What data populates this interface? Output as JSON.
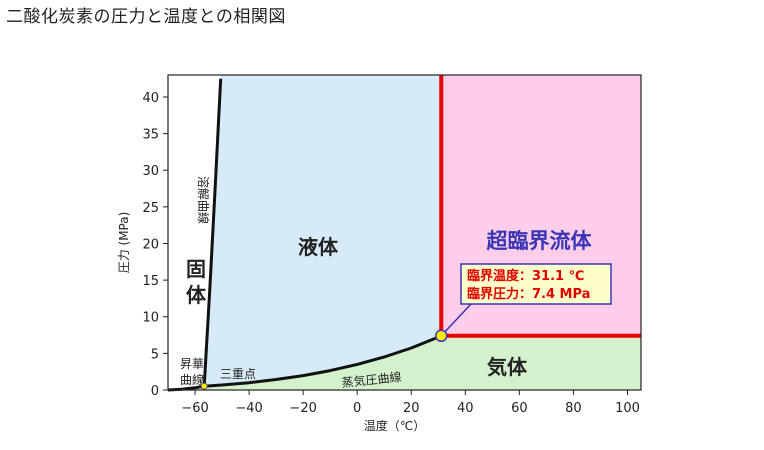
{
  "page": {
    "title": "二酸化炭素の圧力と温度との相関図"
  },
  "colors": {
    "solid": "#ffffff",
    "liquid": "#d6eaf8",
    "gas": "#d3f2cc",
    "supercritical": "#fdcdea",
    "critical_lines": "#e80000",
    "phase_curves": "#111111",
    "critical_point": "#ffee00",
    "supercritical_text": "#3a35b5",
    "callout_fill": "#ffffcc",
    "callout_border": "#3a35b5"
  },
  "chart_data": {
    "type": "line",
    "title": "",
    "xlabel": "温度（℃）",
    "ylabel": "圧力 (MPa)",
    "xlim": [
      -70,
      105
    ],
    "ylim": [
      0,
      43
    ],
    "x_ticks": [
      -60,
      -40,
      -20,
      0,
      20,
      40,
      60,
      80,
      100
    ],
    "x_tick_labels": [
      "−60",
      "−40",
      "−20",
      "0",
      "20",
      "40",
      "60",
      "80",
      "100"
    ],
    "y_ticks": [
      0,
      5,
      10,
      15,
      20,
      25,
      30,
      35,
      40
    ],
    "y_tick_labels": [
      "0",
      "5",
      "10",
      "15",
      "20",
      "25",
      "30",
      "35",
      "40"
    ],
    "grid": false,
    "series": [
      {
        "name": "蒸気圧曲線",
        "x": [
          -56.6,
          -50,
          -40,
          -30,
          -20,
          -10,
          0,
          10,
          20,
          31.1
        ],
        "y": [
          0.52,
          0.68,
          1.0,
          1.43,
          1.97,
          2.65,
          3.49,
          4.5,
          5.73,
          7.38
        ]
      },
      {
        "name": "溶解曲線",
        "x": [
          -56.6,
          -54.5,
          -52.5,
          -50.5
        ],
        "y": [
          0.52,
          14,
          28,
          42.5
        ]
      },
      {
        "name": "昇華曲線",
        "x": [
          -70,
          -65,
          -60,
          -56.6
        ],
        "y": [
          0.0,
          0.1,
          0.3,
          0.52
        ]
      }
    ],
    "critical_point": {
      "temperature": 31.1,
      "pressure": 7.4
    },
    "triple_point": {
      "temperature": -56.6,
      "pressure": 0.52
    },
    "regions": {
      "solid": "固体",
      "liquid": "液体",
      "gas": "気体",
      "supercritical": "超臨界流体"
    },
    "annotations": {
      "triple_point": "三重点",
      "sublimation_curve": [
        "昇華",
        "曲線"
      ],
      "melting_curve": "溶解曲線",
      "vapor_pressure_curve": "蒸気圧曲線",
      "critical_temperature": "臨界温度：31.1 ℃",
      "critical_pressure": "臨界圧力：7.4 MPa"
    }
  }
}
